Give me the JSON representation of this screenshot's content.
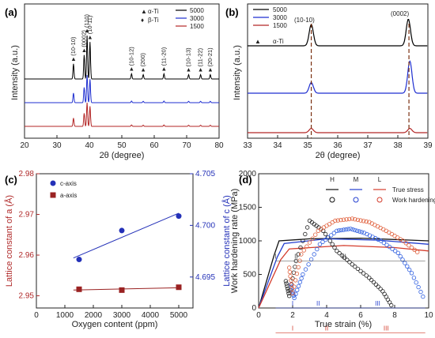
{
  "panels": [
    {
      "label": "(a)",
      "chart_data": {
        "type": "line",
        "xlabel": "2θ (degree)",
        "ylabel": "Intensity (a.u.)",
        "xlim": [
          20,
          80
        ],
        "xticks": [
          "20",
          "30",
          "40",
          "50",
          "60",
          "70",
          "80"
        ],
        "series": [
          {
            "name": "5000",
            "color": "#000000"
          },
          {
            "name": "3000",
            "color": "#1f2fd0"
          },
          {
            "name": "1500",
            "color": "#b32626"
          }
        ],
        "peaks": [
          {
            "x": 35.1,
            "label": "(10-10)",
            "h": 0.35
          },
          {
            "x": 38.4,
            "label": "(0002)",
            "h": 0.55
          },
          {
            "x": 39.3,
            "label": "(110)",
            "h": 1.0
          },
          {
            "x": 40.2,
            "label": "(10-11)",
            "h": 0.85
          },
          {
            "x": 53.0,
            "label": "(10-12)",
            "h": 0.12
          },
          {
            "x": 56.6,
            "label": "(200)",
            "h": 0.1
          },
          {
            "x": 63.0,
            "label": "(11-20)",
            "h": 0.12
          },
          {
            "x": 70.6,
            "label": "(10-13)",
            "h": 0.1
          },
          {
            "x": 74.3,
            "label": "(11-22)",
            "h": 0.1
          },
          {
            "x": 77.3,
            "label": "(20-21)",
            "h": 0.1
          }
        ],
        "markers": [
          {
            "symbol": "▲",
            "label": "α-Ti"
          },
          {
            "symbol": "♦",
            "label": "β-Ti"
          }
        ]
      }
    },
    {
      "label": "(b)",
      "chart_data": {
        "type": "line",
        "xlabel": "2θ (degree)",
        "ylabel": "Intensity (a.u.)",
        "xlim": [
          33,
          39
        ],
        "xticks": [
          "33",
          "34",
          "35",
          "36",
          "37",
          "38",
          "39"
        ],
        "series": [
          {
            "name": "5000",
            "color": "#000000",
            "peaks": [
              [
                35.12,
                0.6
              ],
              [
                38.35,
                0.75
              ]
            ]
          },
          {
            "name": "3000",
            "color": "#1f2fd0",
            "peaks": [
              [
                35.12,
                0.3
              ],
              [
                38.4,
                0.9
              ]
            ]
          },
          {
            "name": "1500",
            "color": "#b32626",
            "peaks": [
              [
                35.12,
                0.12
              ],
              [
                38.4,
                0.12
              ]
            ]
          }
        ],
        "annotations": [
          "(10-10)",
          "(0002)"
        ],
        "marker_label": "α-Ti",
        "marker_symbol": "▲"
      }
    },
    {
      "label": "(c)",
      "chart_data": {
        "type": "scatter",
        "xlabel": "Oxygen content (ppm)",
        "ylabel_left": "Lattice constant of a (Å)",
        "ylabel_right": "Lattice constant of c (Å)",
        "xlim": [
          0,
          5500
        ],
        "xticks": [
          "0",
          "1000",
          "2000",
          "3000",
          "4000",
          "5000"
        ],
        "ylim_left": [
          2.947,
          2.98
        ],
        "yticks_left": [
          "2.95",
          "2.96",
          "2.97",
          "2.98"
        ],
        "ylim_right": [
          4.692,
          4.705
        ],
        "yticks_right": [
          "4.695",
          "4.700",
          "4.705"
        ],
        "series": [
          {
            "name": "c-axis",
            "axis": "right",
            "color": "#2431b8",
            "x": [
              1500,
              3000,
              5000
            ],
            "y": [
              4.6967,
              4.6995,
              4.7009
            ]
          },
          {
            "name": "a-axis",
            "axis": "left",
            "color": "#9a2222",
            "x": [
              1500,
              3000,
              5000
            ],
            "y": [
              2.9516,
              2.9514,
              2.9521
            ]
          }
        ]
      }
    },
    {
      "label": "(d)",
      "chart_data": {
        "type": "line",
        "xlabel": "True strain (%)",
        "ylabel": "Work hardening rate (MPa)",
        "xlim": [
          0,
          10
        ],
        "xticks": [
          "0",
          "2",
          "4",
          "6",
          "8",
          "10"
        ],
        "ylim": [
          0,
          2000
        ],
        "yticks": [
          "0",
          "500",
          "1000",
          "1500",
          "2000"
        ],
        "legend_headers": [
          "H",
          "M",
          "L"
        ],
        "legend_rows": [
          "True stress",
          "Work hardening rate"
        ],
        "stress_series": [
          {
            "name": "H",
            "color": "#111111",
            "x": [
              0,
              0.9,
              1.2,
              3,
              6,
              10
            ],
            "y": [
              0,
              780,
              1000,
              1030,
              1040,
              1000
            ]
          },
          {
            "name": "M",
            "color": "#2540d0",
            "x": [
              0,
              1.1,
              1.5,
              4,
              7,
              10
            ],
            "y": [
              0,
              760,
              960,
              1030,
              1010,
              950
            ]
          },
          {
            "name": "L",
            "color": "#d43c2c",
            "x": [
              0,
              1.3,
              1.8,
              5,
              8,
              10
            ],
            "y": [
              0,
              720,
              880,
              930,
              900,
              850
            ]
          }
        ],
        "whr_series": [
          {
            "name": "H",
            "color": "#222222",
            "x": [
              1.6,
              1.8,
              2.2,
              3.0,
              3.8,
              4.6,
              5.5,
              6.5,
              7.3,
              7.9
            ],
            "y": [
              400,
              180,
              700,
              1300,
              1150,
              850,
              650,
              450,
              250,
              0
            ]
          },
          {
            "name": "M",
            "color": "#2f5fe0",
            "x": [
              1.9,
              2.1,
              2.6,
              3.6,
              4.6,
              5.4,
              6.2,
              7.2,
              8.2,
              9.0,
              9.8
            ],
            "y": [
              350,
              150,
              500,
              950,
              1150,
              1180,
              1120,
              1000,
              820,
              520,
              100
            ]
          },
          {
            "name": "L",
            "color": "#e0603c",
            "x": [
              1.8,
              2.0,
              2.5,
              3.5,
              4.5,
              5.5,
              6.5,
              7.5,
              8.5,
              9.5
            ],
            "y": [
              600,
              220,
              800,
              1150,
              1300,
              1330,
              1280,
              1150,
              1000,
              800
            ]
          }
        ],
        "stage_labels": [
          "I",
          "II",
          "III"
        ]
      }
    }
  ]
}
